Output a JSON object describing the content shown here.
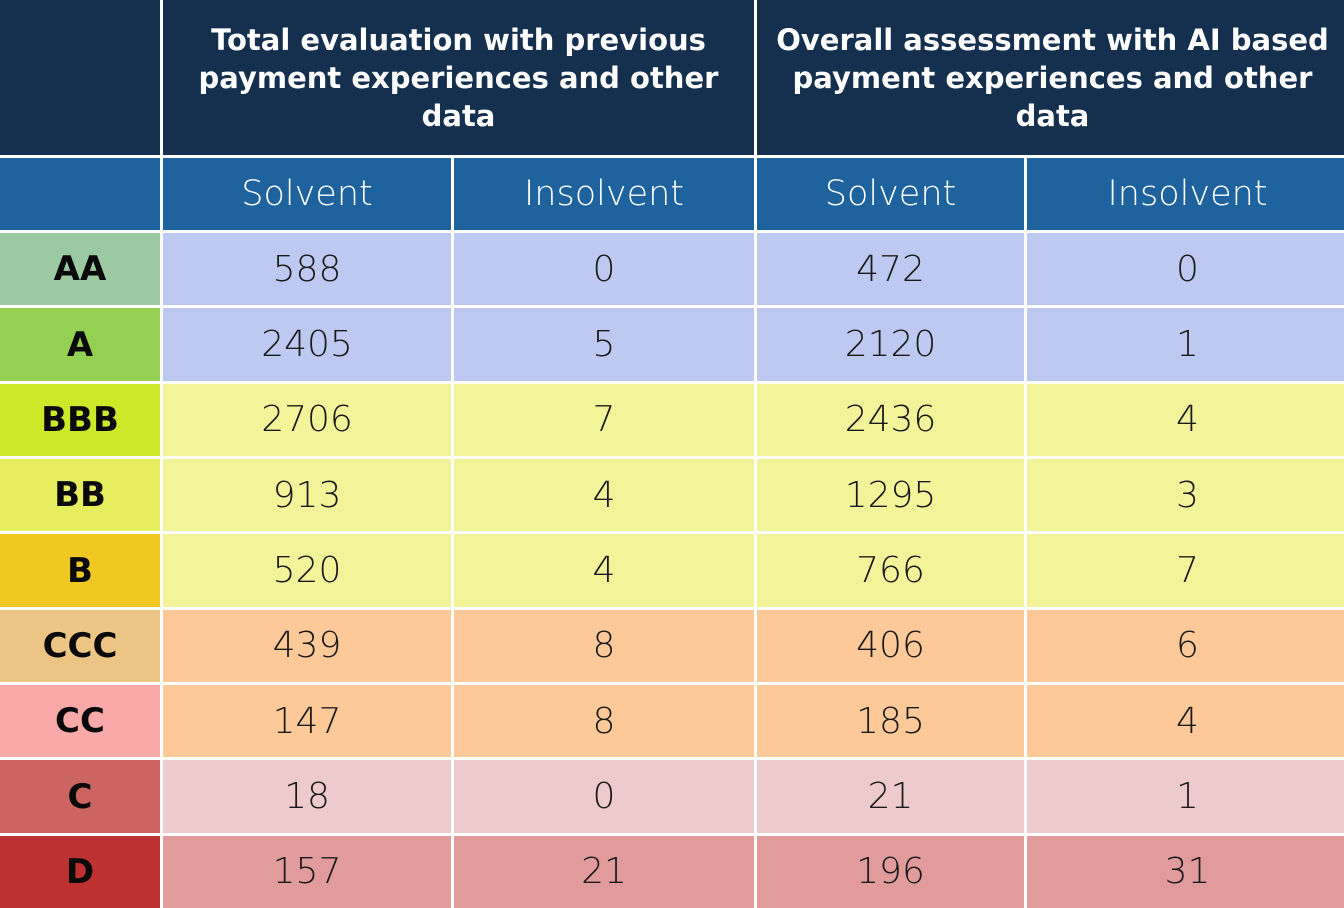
{
  "chart_data": {
    "type": "table",
    "column_groups": [
      {
        "label": "Total evaluation with previous payment experiences and other data"
      },
      {
        "label": "Overall assessment with AI based payment experiences and other data"
      }
    ],
    "sub_headers": [
      "Solvent",
      "Insolvent",
      "Solvent",
      "Insolvent"
    ],
    "rows": [
      {
        "rating": "AA",
        "values": [
          "588",
          "0",
          "472",
          "0"
        ]
      },
      {
        "rating": "A",
        "values": [
          "2405",
          "5",
          "2120",
          "1"
        ]
      },
      {
        "rating": "BBB",
        "values": [
          "2706",
          "7",
          "2436",
          "4"
        ]
      },
      {
        "rating": "BB",
        "values": [
          "913",
          "4",
          "1295",
          "3"
        ]
      },
      {
        "rating": "B",
        "values": [
          "520",
          "4",
          "766",
          "7"
        ]
      },
      {
        "rating": "CCC",
        "values": [
          "439",
          "8",
          "406",
          "6"
        ]
      },
      {
        "rating": "CC",
        "values": [
          "147",
          "8",
          "185",
          "4"
        ]
      },
      {
        "rating": "C",
        "values": [
          "18",
          "0",
          "21",
          "1"
        ]
      },
      {
        "rating": "D",
        "values": [
          "157",
          "21",
          "196",
          "31"
        ]
      }
    ]
  },
  "colors": {
    "header_dark": "#152f4f",
    "header_mid": "#1e639e",
    "rating_colors": [
      "#9bcaa2",
      "#94d152",
      "#cbe829",
      "#e6ed5f",
      "#f1c822",
      "#ecc584",
      "#f9a9a8",
      "#cc6462",
      "#bd3132"
    ],
    "row_colors": [
      "#bdc9f1",
      "#bdc9f1",
      "#f3f39a",
      "#f3f39a",
      "#f3f39a",
      "#fec999",
      "#fec999",
      "#edcacb",
      "#e19b9b"
    ]
  }
}
